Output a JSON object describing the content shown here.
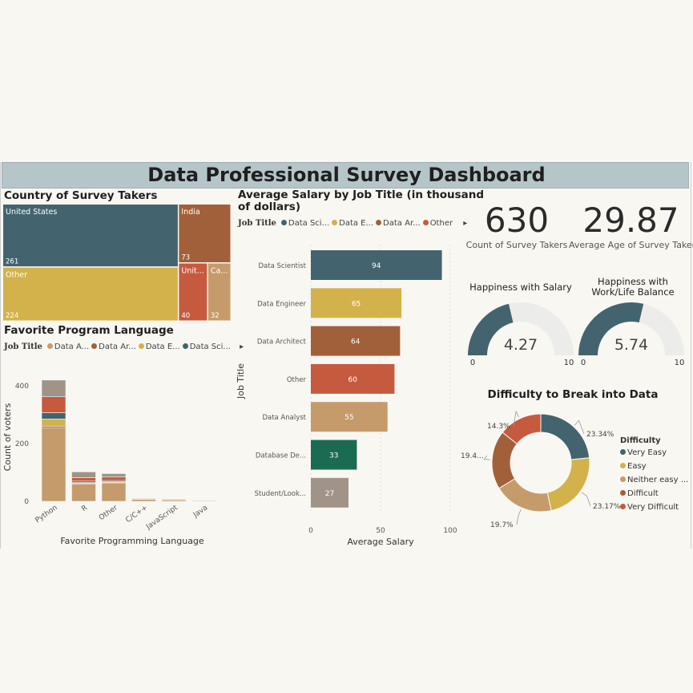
{
  "header": {
    "title": "Data Professional Survey Dashboard"
  },
  "colors": {
    "teal": "#43646e",
    "gold": "#d3b24b",
    "brown": "#a2603a",
    "orange": "#c65a3e",
    "tan": "#c59b6b",
    "green": "#1a6b52",
    "gray": "#a09489",
    "track": "#ececea"
  },
  "treemap": {
    "title": "Country of Survey Takers",
    "tiles": [
      {
        "label": "United States",
        "value": "261",
        "color": "#43646e"
      },
      {
        "label": "India",
        "value": "73",
        "color": "#a2603a"
      },
      {
        "label": "Other",
        "value": "224",
        "color": "#d3b24b"
      },
      {
        "label": "Unit...",
        "value": "40",
        "color": "#c65a3e"
      },
      {
        "label": "Ca...",
        "value": "32",
        "color": "#c59b6b"
      }
    ]
  },
  "language": {
    "title": "Favorite Program Language",
    "legend_label": "Job Title",
    "legend": [
      {
        "name": "Data A...",
        "color": "#c59b6b"
      },
      {
        "name": "Data Ar...",
        "color": "#a2603a"
      },
      {
        "name": "Data E...",
        "color": "#d3b24b"
      },
      {
        "name": "Data Sci...",
        "color": "#43646e"
      }
    ],
    "legend_arrow": "▸"
  },
  "salary": {
    "title_line1": "Average Salary by Job Title (in thousand",
    "title_line2": "of dollars)",
    "legend_label": "Job Title",
    "legend": [
      {
        "name": "Data Sci...",
        "color": "#43646e"
      },
      {
        "name": "Data E...",
        "color": "#d3b24b"
      },
      {
        "name": "Data Ar...",
        "color": "#a2603a"
      },
      {
        "name": "Other",
        "color": "#c65a3e"
      }
    ],
    "legend_arrow": "▸"
  },
  "kpis": [
    {
      "value": "630",
      "label": "Count of Survey Takers"
    },
    {
      "value": "29.87",
      "label": "Average Age of Survey Taker"
    }
  ],
  "gauges": [
    {
      "title_line1": "Happiness with Salary",
      "title_line2": "",
      "value": 4.27,
      "value_label": "4.27",
      "min": "0",
      "max": "10"
    },
    {
      "title_line1": "Happiness with",
      "title_line2": "Work/Life Balance",
      "value": 5.74,
      "value_label": "5.74",
      "min": "0",
      "max": "10"
    }
  ],
  "difficulty": {
    "title": "Difficulty to Break into Data",
    "legend_title": "Difficulty",
    "legend": [
      {
        "name": "Very Easy",
        "color": "#43646e"
      },
      {
        "name": "Easy",
        "color": "#d3b24b"
      },
      {
        "name": "Neither easy ...",
        "color": "#c59b6b"
      },
      {
        "name": "Difficult",
        "color": "#a2603a"
      },
      {
        "name": "Very Difficult",
        "color": "#c65a3e"
      }
    ]
  },
  "chart_data": [
    {
      "type": "treemap",
      "title": "Country of Survey Takers",
      "categories": [
        "United States",
        "Other",
        "India",
        "United Kingdom",
        "Canada"
      ],
      "values": [
        261,
        224,
        73,
        40,
        32
      ]
    },
    {
      "type": "bar",
      "title": "Favorite Program Language",
      "stacked": true,
      "categories": [
        "Python",
        "R",
        "Other",
        "C/C++",
        "JavaScript",
        "Java"
      ],
      "xlabel": "Favorite Programming Language",
      "ylabel": "Count of voters",
      "ylim": [
        0,
        450
      ],
      "yticks": [
        "0",
        "200",
        "400"
      ],
      "series": [
        {
          "name": "Data A...",
          "color": "#c59b6b",
          "values": [
            255,
            60,
            62,
            8,
            6,
            2
          ]
        },
        {
          "name": "Data Ar...",
          "color": "#a2603a",
          "values": [
            5,
            3,
            3,
            1,
            1,
            0
          ]
        },
        {
          "name": "Data E...",
          "color": "#d3b24b",
          "values": [
            25,
            2,
            3,
            0,
            0,
            0
          ]
        },
        {
          "name": "Data Sci...",
          "color": "#43646e",
          "values": [
            22,
            5,
            4,
            0,
            0,
            0
          ]
        },
        {
          "name": "Other",
          "color": "#c65a3e",
          "values": [
            55,
            12,
            12,
            1,
            1,
            0
          ]
        },
        {
          "name": "Student/Look...",
          "color": "#a09489",
          "values": [
            58,
            20,
            12,
            1,
            0,
            1
          ]
        }
      ]
    },
    {
      "type": "bar",
      "orientation": "horizontal",
      "title": "Average Salary by Job Title (in thousand of dollars)",
      "categories": [
        "Data Scientist",
        "Data Engineer",
        "Data Architect",
        "Other",
        "Data Analyst",
        "Database De...",
        "Student/Look..."
      ],
      "values": [
        94,
        65,
        64,
        60,
        55,
        33,
        27
      ],
      "value_labels": [
        "94",
        "65",
        "64",
        "60",
        "55",
        "33",
        "27"
      ],
      "colors": [
        "#43646e",
        "#d3b24b",
        "#a2603a",
        "#c65a3e",
        "#c59b6b",
        "#1a6b52",
        "#a09489"
      ],
      "xlabel": "Average Salary",
      "ylabel": "Job Title",
      "xlim": [
        0,
        100
      ],
      "xticks": [
        "0",
        "50",
        "100"
      ]
    },
    {
      "type": "pie",
      "donut": true,
      "title": "Difficulty to Break into Data",
      "categories": [
        "Very Easy",
        "Easy",
        "Neither easy ...",
        "Difficult",
        "Very Difficult"
      ],
      "values": [
        23.34,
        23.17,
        19.7,
        19.4,
        14.3
      ],
      "value_labels": [
        "23.34%",
        "23.17%",
        "19.7%",
        "19.4...",
        "14.3%"
      ],
      "colors": [
        "#43646e",
        "#d3b24b",
        "#c59b6b",
        "#a2603a",
        "#c65a3e"
      ]
    }
  ]
}
